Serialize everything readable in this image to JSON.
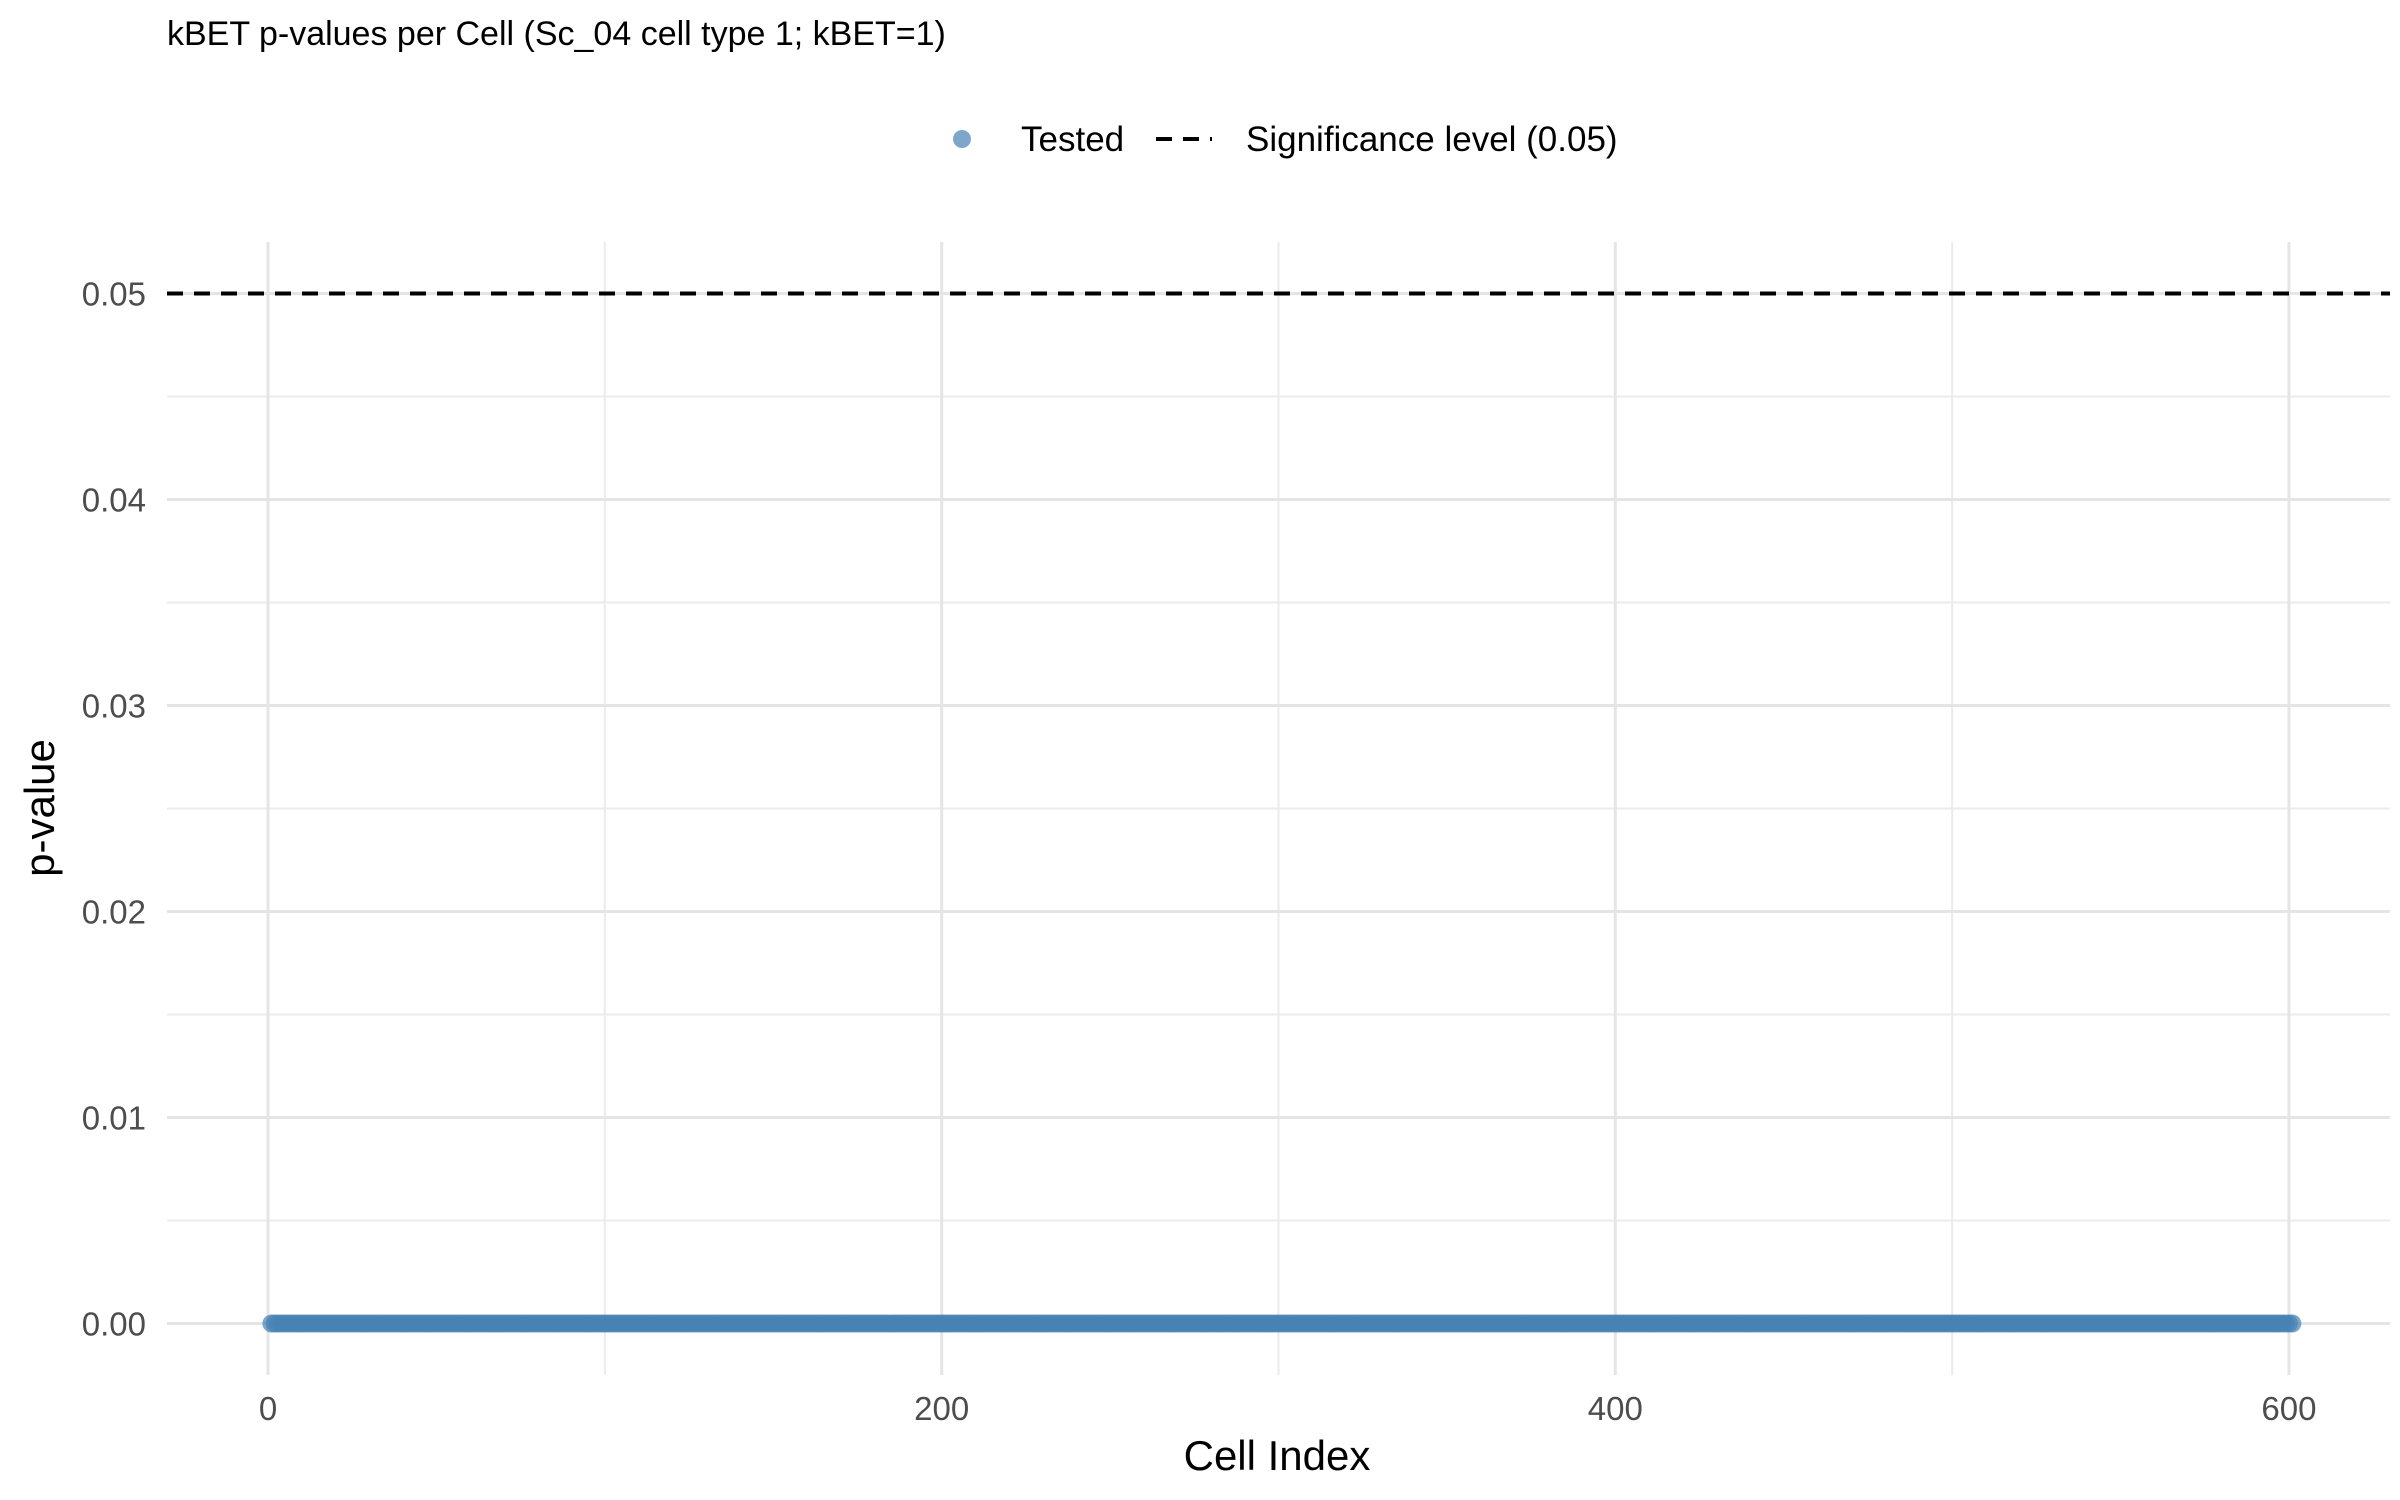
{
  "chart_data": {
    "type": "scatter",
    "title": "kBET p-values per Cell (Sc_04 cell type 1; kBET=1)",
    "xlabel": "Cell Index",
    "ylabel": "p-value",
    "xlim": [
      -30,
      630
    ],
    "ylim": [
      -0.0025,
      0.0525
    ],
    "x_ticks": [
      0,
      200,
      400,
      600
    ],
    "y_ticks": [
      0.0,
      0.01,
      0.02,
      0.03,
      0.04,
      0.05
    ],
    "x_tick_labels": [
      "0",
      "200",
      "400",
      "600"
    ],
    "y_tick_labels": [
      "0.00",
      "0.01",
      "0.02",
      "0.03",
      "0.04",
      "0.05"
    ],
    "grid": true,
    "legend_position": "top",
    "series": [
      {
        "name": "Tested",
        "color": "#4682b4",
        "marker": "circle",
        "x_range": [
          1,
          601
        ],
        "y_constant": 0.0
      }
    ],
    "reference_lines": [
      {
        "name": "Significance level (0.05)",
        "y": 0.05,
        "style": "dashed",
        "color": "#000000"
      }
    ]
  }
}
